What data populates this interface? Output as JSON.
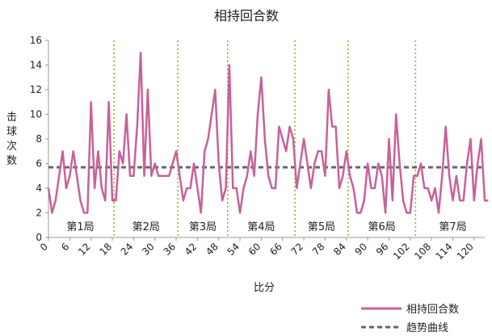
{
  "chart_data": {
    "type": "line",
    "title": "相持回合数",
    "xlabel": "比分",
    "ylabel": "击球次数",
    "ylim": [
      0,
      16
    ],
    "yticks": [
      0,
      2,
      4,
      6,
      8,
      10,
      12,
      14,
      16
    ],
    "xlim": [
      0,
      123
    ],
    "xticks": [
      0,
      6,
      12,
      18,
      24,
      30,
      36,
      42,
      48,
      54,
      60,
      66,
      72,
      78,
      84,
      90,
      96,
      102,
      108,
      114,
      120
    ],
    "grid": false,
    "legend_position": "bottom-right",
    "series": [
      {
        "name": "相持回合数",
        "color": "#c9609a",
        "values": [
          4,
          2,
          3,
          5,
          7,
          4,
          5,
          7,
          5,
          3,
          2,
          2,
          11,
          4,
          7,
          4,
          3,
          11,
          3,
          3,
          7,
          6,
          10,
          5,
          5,
          9,
          15,
          5,
          12,
          5,
          6,
          5,
          5,
          5,
          5,
          6,
          7,
          5,
          3,
          4,
          4,
          6,
          4,
          2,
          7,
          8,
          10,
          12,
          6,
          3,
          4,
          14,
          4,
          4,
          2,
          4,
          5,
          7,
          5,
          10,
          13,
          8,
          5,
          4,
          4,
          9,
          8,
          7,
          9,
          8,
          4,
          6,
          8,
          6,
          4,
          6,
          7,
          7,
          5,
          12,
          9,
          9,
          4,
          5,
          7,
          5,
          4,
          2,
          2,
          3,
          6,
          4,
          4,
          6,
          5,
          2,
          8,
          3,
          10,
          6,
          3,
          2,
          2,
          5,
          5,
          6,
          4,
          4,
          3,
          4,
          2,
          5,
          9,
          5,
          3,
          5,
          3,
          3,
          6,
          8,
          3,
          6,
          8,
          3,
          3
        ]
      },
      {
        "name": "趋势曲线",
        "color": "#666666",
        "dashed": true,
        "values": [
          5.7
        ]
      }
    ],
    "set_boundaries": [
      18.5,
      36.5,
      50.5,
      69.5,
      84.5,
      103.5
    ],
    "set_separator_color": "#a0a030",
    "sets": [
      {
        "label": "第1局",
        "center": 9
      },
      {
        "label": "第2局",
        "center": 27.5
      },
      {
        "label": "第3局",
        "center": 43.5
      },
      {
        "label": "第4局",
        "center": 60
      },
      {
        "label": "第5局",
        "center": 77
      },
      {
        "label": "第6局",
        "center": 94
      },
      {
        "label": "第7局",
        "center": 114
      }
    ]
  }
}
